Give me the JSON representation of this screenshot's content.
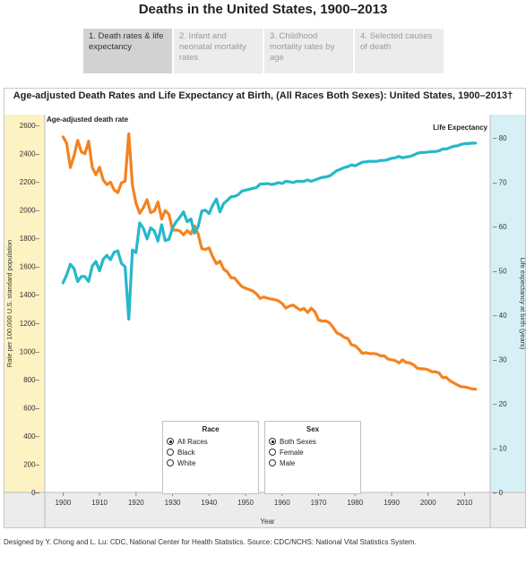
{
  "page": {
    "title": "Deaths in the United States, 1900–2013",
    "credit": "Designed by Y. Chong and L. Lu: CDC, National Center for Health Statistics. Source: CDC/NCHS: National Vital Statistics System."
  },
  "tabs": [
    {
      "label": "1. Death rates & life expectancy",
      "active": true
    },
    {
      "label": "2. Infant and neonatal mortality rates",
      "active": false
    },
    {
      "label": "3. Childhood mortality rates by age",
      "active": false
    },
    {
      "label": "4. Selected causes of death",
      "active": false
    }
  ],
  "legend": {
    "race": {
      "title": "Race",
      "options": [
        "All Races",
        "Black",
        "White"
      ],
      "selected": "All Races"
    },
    "sex": {
      "title": "Sex",
      "options": [
        "Both Sexes",
        "Female",
        "Male"
      ],
      "selected": "Both Sexes"
    }
  },
  "chart_data": {
    "type": "line",
    "title": "Age-adjusted Death Rates and Life Expectancy at Birth, (All Races Both Sexes): United States, 1900–2013†",
    "xlabel": "Year",
    "ylabel_left": "Rate per 100,000 U.S. standard population",
    "ylabel_right": "Life expectancy at birth (years)",
    "left_axis_title": "Age-adjusted death rate",
    "right_axis_title": "Life Expectancy",
    "xlim": [
      1895,
      2017
    ],
    "ylim_left": [
      0,
      2600
    ],
    "ylim_right": [
      0,
      80
    ],
    "x_ticks": [
      1900,
      1910,
      1920,
      1930,
      1940,
      1950,
      1960,
      1970,
      1980,
      1990,
      2000,
      2010
    ],
    "y_ticks_left": [
      0,
      200,
      400,
      600,
      800,
      1000,
      1200,
      1400,
      1600,
      1800,
      2000,
      2200,
      2400,
      2600
    ],
    "y_ticks_right": [
      0,
      10,
      20,
      30,
      40,
      50,
      60,
      70,
      80
    ],
    "colors": {
      "death_rate": "#f5821f",
      "life_expectancy": "#25b8c9",
      "left_band": "#fdf2c2",
      "right_band": "#d7f0f5",
      "footer": "#ececec"
    },
    "series": [
      {
        "name": "Age-adjusted death rate",
        "axis": "left",
        "x": [
          1900,
          1901,
          1902,
          1903,
          1904,
          1905,
          1906,
          1907,
          1908,
          1909,
          1910,
          1911,
          1912,
          1913,
          1914,
          1915,
          1916,
          1917,
          1918,
          1919,
          1920,
          1921,
          1922,
          1923,
          1924,
          1925,
          1926,
          1927,
          1928,
          1929,
          1930,
          1931,
          1932,
          1933,
          1934,
          1935,
          1936,
          1937,
          1938,
          1939,
          1940,
          1941,
          1942,
          1943,
          1944,
          1945,
          1946,
          1947,
          1948,
          1949,
          1950,
          1951,
          1952,
          1953,
          1954,
          1955,
          1956,
          1957,
          1958,
          1959,
          1960,
          1961,
          1962,
          1963,
          1964,
          1965,
          1966,
          1967,
          1968,
          1969,
          1970,
          1971,
          1972,
          1973,
          1974,
          1975,
          1976,
          1977,
          1978,
          1979,
          1980,
          1981,
          1982,
          1983,
          1984,
          1985,
          1986,
          1987,
          1988,
          1989,
          1990,
          1991,
          1992,
          1993,
          1994,
          1995,
          1996,
          1997,
          1998,
          1999,
          2000,
          2001,
          2002,
          2003,
          2004,
          2005,
          2006,
          2007,
          2008,
          2009,
          2010,
          2011,
          2012,
          2013
        ],
        "values": [
          2518,
          2473,
          2301,
          2384,
          2494,
          2412,
          2399,
          2488,
          2302,
          2250,
          2303,
          2213,
          2180,
          2198,
          2142,
          2124,
          2192,
          2205,
          2541,
          2176,
          2047,
          1977,
          2017,
          2073,
          1981,
          1993,
          2057,
          1936,
          1997,
          1969,
          1858,
          1859,
          1852,
          1825,
          1854,
          1831,
          1888,
          1831,
          1726,
          1721,
          1732,
          1669,
          1620,
          1638,
          1581,
          1562,
          1521,
          1518,
          1486,
          1458,
          1446,
          1437,
          1427,
          1405,
          1374,
          1384,
          1376,
          1370,
          1366,
          1357,
          1339,
          1305,
          1319,
          1327,
          1308,
          1292,
          1303,
          1274,
          1305,
          1279,
          1222,
          1213,
          1215,
          1200,
          1168,
          1130,
          1118,
          1099,
          1090,
          1046,
          1039,
          1015,
          985,
          990,
          983,
          984,
          979,
          967,
          968,
          944,
          939,
          934,
          917,
          939,
          920,
          917,
          904,
          880,
          875,
          875,
          869,
          855,
          855,
          846,
          813,
          815,
          791,
          776,
          762,
          749,
          747,
          741,
          733,
          731
        ]
      },
      {
        "name": "Life Expectancy",
        "axis": "right",
        "x": [
          1900,
          1901,
          1902,
          1903,
          1904,
          1905,
          1906,
          1907,
          1908,
          1909,
          1910,
          1911,
          1912,
          1913,
          1914,
          1915,
          1916,
          1917,
          1918,
          1919,
          1920,
          1921,
          1922,
          1923,
          1924,
          1925,
          1926,
          1927,
          1928,
          1929,
          1930,
          1931,
          1932,
          1933,
          1934,
          1935,
          1936,
          1937,
          1938,
          1939,
          1940,
          1941,
          1942,
          1943,
          1944,
          1945,
          1946,
          1947,
          1948,
          1949,
          1950,
          1951,
          1952,
          1953,
          1954,
          1955,
          1956,
          1957,
          1958,
          1959,
          1960,
          1961,
          1962,
          1963,
          1964,
          1965,
          1966,
          1967,
          1968,
          1969,
          1970,
          1971,
          1972,
          1973,
          1974,
          1975,
          1976,
          1977,
          1978,
          1979,
          1980,
          1981,
          1982,
          1983,
          1984,
          1985,
          1986,
          1987,
          1988,
          1989,
          1990,
          1991,
          1992,
          1993,
          1994,
          1995,
          1996,
          1997,
          1998,
          1999,
          2000,
          2001,
          2002,
          2003,
          2004,
          2005,
          2006,
          2007,
          2008,
          2009,
          2010,
          2011,
          2012,
          2013
        ],
        "values": [
          47.3,
          49.1,
          51.5,
          50.5,
          47.6,
          48.7,
          48.7,
          47.6,
          51.1,
          52.1,
          50.0,
          52.6,
          53.5,
          52.5,
          54.2,
          54.5,
          51.7,
          50.9,
          39.1,
          54.7,
          54.1,
          60.8,
          59.6,
          57.2,
          59.7,
          59.0,
          56.7,
          60.4,
          56.8,
          57.1,
          59.7,
          61.1,
          62.1,
          63.3,
          61.1,
          61.7,
          58.5,
          60.0,
          63.5,
          63.7,
          62.9,
          64.8,
          66.2,
          63.3,
          65.2,
          65.9,
          66.7,
          66.8,
          67.2,
          68.0,
          68.2,
          68.4,
          68.6,
          68.8,
          69.6,
          69.6,
          69.7,
          69.5,
          69.6,
          69.9,
          69.7,
          70.2,
          70.1,
          69.9,
          70.2,
          70.2,
          70.2,
          70.5,
          70.2,
          70.5,
          70.8,
          71.1,
          71.2,
          71.4,
          72.0,
          72.6,
          72.9,
          73.3,
          73.5,
          73.9,
          73.7,
          74.1,
          74.5,
          74.6,
          74.7,
          74.7,
          74.7,
          74.9,
          74.9,
          75.1,
          75.4,
          75.5,
          75.8,
          75.5,
          75.7,
          75.8,
          76.1,
          76.5,
          76.7,
          76.7,
          76.8,
          76.9,
          76.9,
          77.1,
          77.5,
          77.5,
          77.8,
          78.1,
          78.2,
          78.5,
          78.7,
          78.7,
          78.8,
          78.8
        ]
      }
    ]
  }
}
